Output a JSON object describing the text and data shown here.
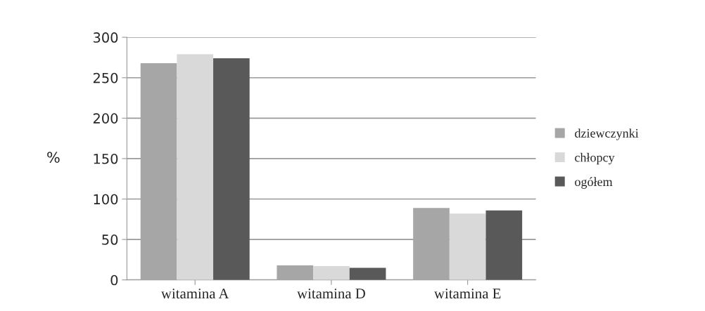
{
  "chart_data": {
    "type": "bar",
    "categories": [
      "witamina A",
      "witamina D",
      "witamina E"
    ],
    "ylabel": "%",
    "series": [
      {
        "name": "dziewczynki",
        "color": "#a6a6a6",
        "values": [
          268,
          18,
          89
        ]
      },
      {
        "name": "chłopcy",
        "color": "#d9d9d9",
        "values": [
          279,
          17,
          82
        ]
      },
      {
        "name": "ogółem",
        "color": "#595959",
        "values": [
          274,
          15,
          86
        ]
      }
    ],
    "ylim": [
      0,
      300
    ],
    "yticks": [
      0,
      50,
      100,
      150,
      200,
      250,
      300
    ],
    "grid": "y",
    "legend": "right"
  }
}
